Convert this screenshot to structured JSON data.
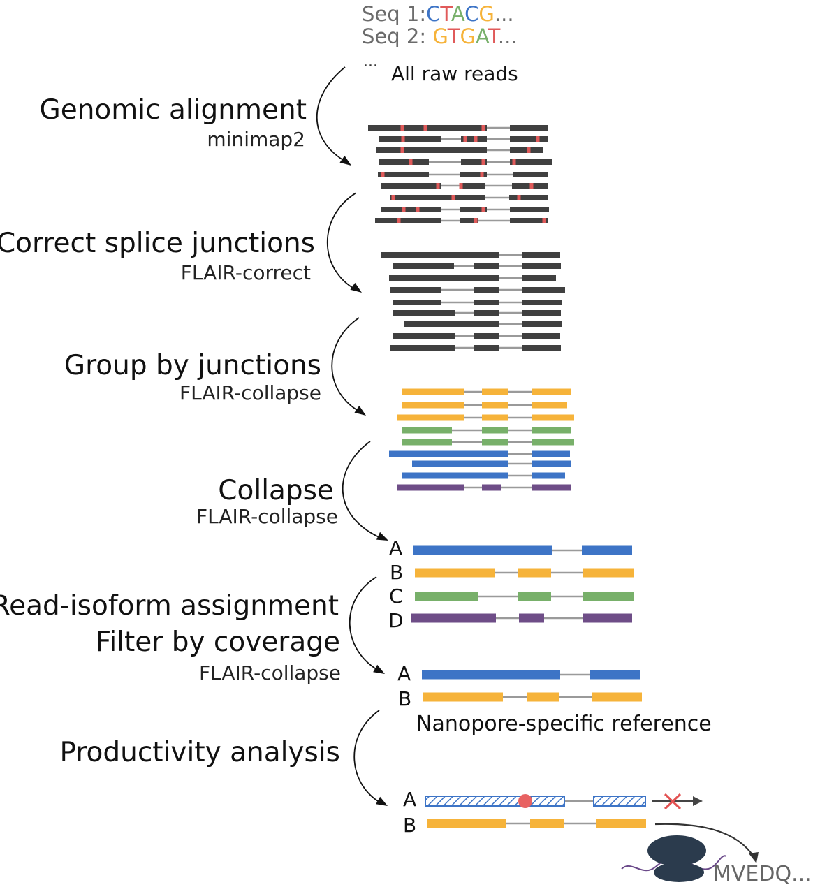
{
  "colors": {
    "dark_read": "#404040",
    "intron_line": "#9a9a9a",
    "mismatch": "#e05a5a",
    "orange": "#f6b33a",
    "green": "#78b06a",
    "blue": "#3d74c6",
    "purple": "#6e4d87",
    "stop_red": "#e86262",
    "cross": "#e35252",
    "ribosome": "#2b3b4d",
    "mrna": "#6b4a8a",
    "arrow": "#111111"
  },
  "raw_reads": {
    "seq1_prefix": "Seq 1:",
    "seq1_bases": [
      {
        "b": "C",
        "color": "#3d74c6"
      },
      {
        "b": "T",
        "color": "#e05a5a"
      },
      {
        "b": "A",
        "color": "#78b06a"
      },
      {
        "b": "C",
        "color": "#3d74c6"
      },
      {
        "b": "G",
        "color": "#f6b33a"
      }
    ],
    "seq1_suffix": "...",
    "seq2_prefix": "Seq 2: ",
    "seq2_bases": [
      {
        "b": "G",
        "color": "#f6b33a"
      },
      {
        "b": "T",
        "color": "#e05a5a"
      },
      {
        "b": "G",
        "color": "#f6b33a"
      },
      {
        "b": "A",
        "color": "#78b06a"
      },
      {
        "b": "T",
        "color": "#e05a5a"
      }
    ],
    "seq2_suffix": "...",
    "ellipsis": "...",
    "label": "All raw reads"
  },
  "steps": [
    {
      "title": "Genomic alignment",
      "tool": "minimap2"
    },
    {
      "title": "Correct splice junctions",
      "tool": "FLAIR-correct"
    },
    {
      "title": "Group by junctions",
      "tool": "FLAIR-collapse"
    },
    {
      "title": "Collapse",
      "tool": "FLAIR-collapse"
    },
    {
      "title": "Read-isoform assignment",
      "title2": "Filter by coverage",
      "tool": "FLAIR-collapse"
    },
    {
      "title": "Productivity analysis",
      "tool": ""
    }
  ],
  "collapsed_isoforms": [
    "A",
    "B",
    "C",
    "D"
  ],
  "filtered_isoforms": [
    "A",
    "B"
  ],
  "reference_label": "Nanopore-specific reference",
  "productivity_isoforms": [
    "A",
    "B"
  ],
  "protein_text": "MVEDQ..."
}
